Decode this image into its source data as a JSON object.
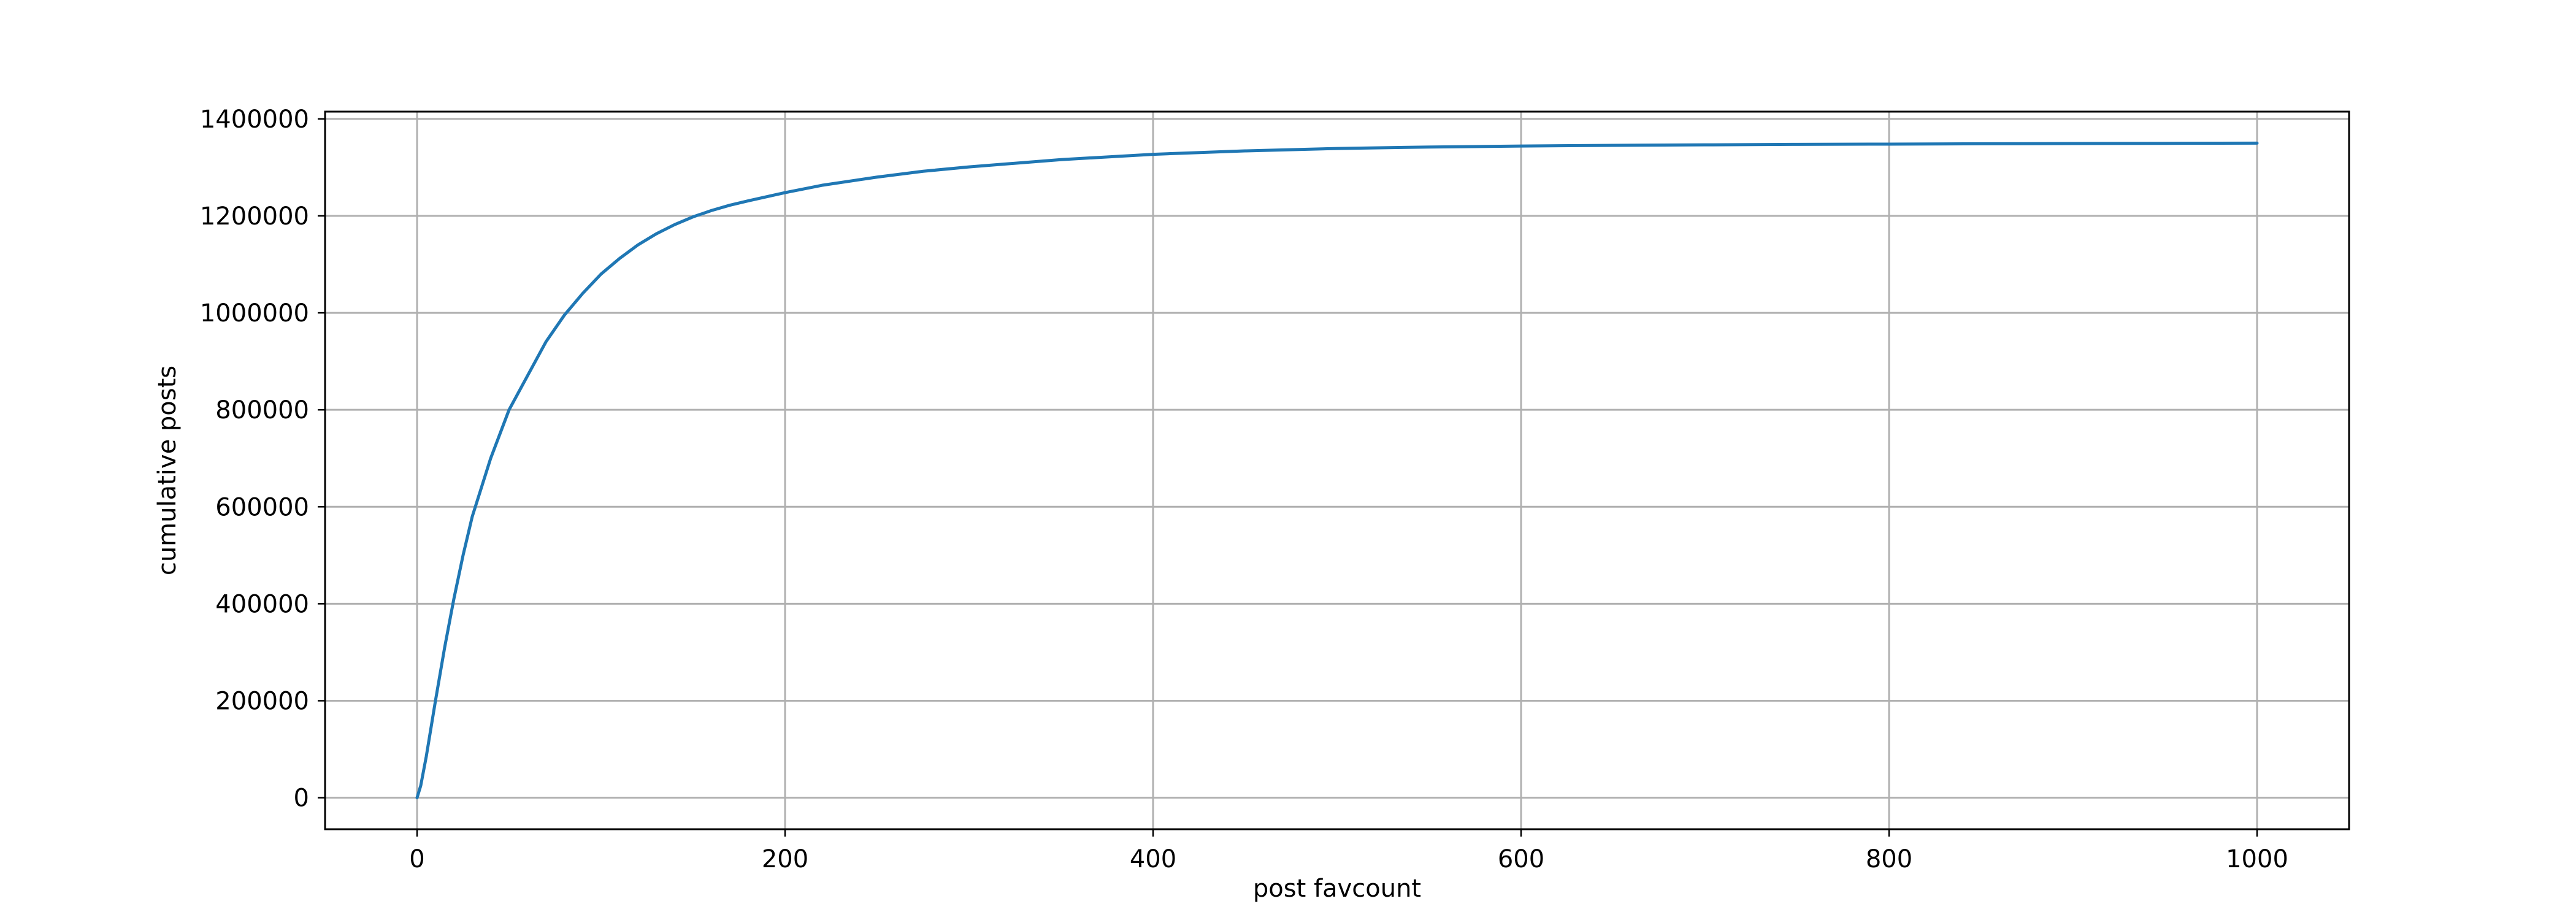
{
  "chart_data": {
    "type": "line",
    "title": "",
    "xlabel": "post favcount",
    "ylabel": "cumulative posts",
    "xlim": [
      -50,
      1050
    ],
    "ylim": [
      -65000,
      1415000
    ],
    "xticks": [
      0,
      200,
      400,
      600,
      800,
      1000
    ],
    "yticks": [
      0,
      200000,
      400000,
      600000,
      800000,
      1000000,
      1200000,
      1400000
    ],
    "grid": true,
    "legend": "none",
    "colors": {
      "line": "#1f77b4",
      "grid": "#b0b0b0",
      "axes": "#000000"
    },
    "series": [
      {
        "x": [
          0,
          2,
          5,
          10,
          15,
          20,
          25,
          30,
          40,
          50,
          60,
          70,
          80,
          90,
          100,
          110,
          120,
          130,
          140,
          150,
          160,
          170,
          180,
          200,
          220,
          250,
          275,
          300,
          350,
          400,
          450,
          500,
          550,
          600,
          650,
          700,
          750,
          800,
          850,
          900,
          950,
          1000
        ],
        "y": [
          0,
          25000,
          85000,
          200000,
          310000,
          410000,
          500000,
          580000,
          700000,
          800000,
          870000,
          940000,
          995000,
          1040000,
          1080000,
          1112000,
          1140000,
          1163000,
          1182000,
          1198000,
          1211000,
          1222000,
          1231000,
          1248000,
          1263000,
          1280000,
          1292000,
          1301000,
          1316000,
          1327000,
          1334000,
          1339000,
          1342000,
          1344000,
          1345500,
          1346500,
          1347500,
          1348000,
          1348700,
          1349200,
          1349600,
          1350000
        ]
      }
    ]
  }
}
